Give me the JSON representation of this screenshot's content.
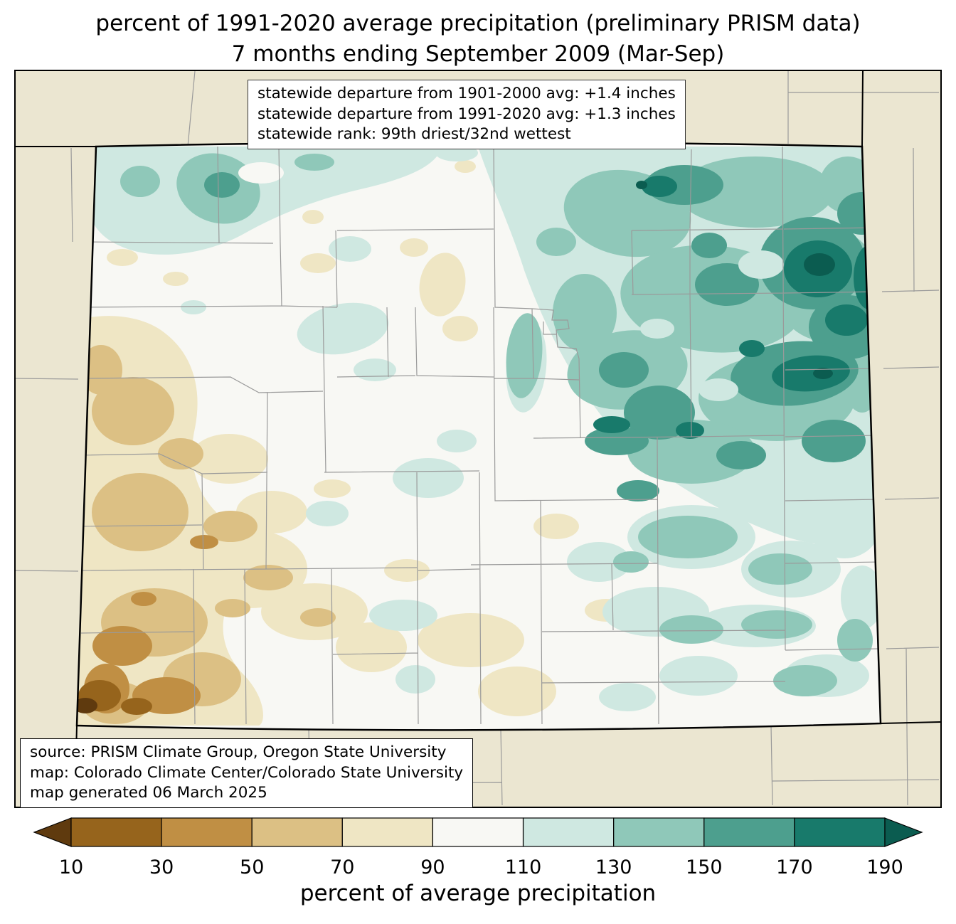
{
  "title": {
    "line1": "percent of 1991-2020 average precipitation (preliminary PRISM data)",
    "line2": "7 months ending September 2009 (Mar-Sep)"
  },
  "stats_box": {
    "lines": [
      "statewide departure from 1901-2000 avg: +1.4 inches",
      "statewide departure from 1991-2020 avg: +1.3 inches",
      "statewide rank: 99th driest/32nd wettest"
    ]
  },
  "source_box": {
    "lines": [
      "source: PRISM Climate Group, Oregon State University",
      "map: Colorado Climate Center/Colorado State University",
      "map generated 06 March 2025"
    ]
  },
  "legend": {
    "ticks": [
      "10",
      "30",
      "50",
      "70",
      "90",
      "110",
      "130",
      "150",
      "170",
      "190"
    ],
    "caption": "percent of average precipitation"
  },
  "palette": {
    "buckets": [
      "<10",
      "10-30",
      "30-50",
      "50-70",
      "70-90",
      "90-110",
      "110-130",
      "130-150",
      "150-170",
      "170-190",
      ">190"
    ],
    "colors": [
      "#5f3a0e",
      "#96641c",
      "#c08f44",
      "#dcc084",
      "#efe6c4",
      "#f8f8f4",
      "#cfe8e1",
      "#8fc8b9",
      "#4d9f8e",
      "#187a6b",
      "#0b5c50"
    ],
    "outside_state_bg": "#ebe6d1",
    "county_line": "#9a9a9a",
    "state_border": "#000000"
  }
}
